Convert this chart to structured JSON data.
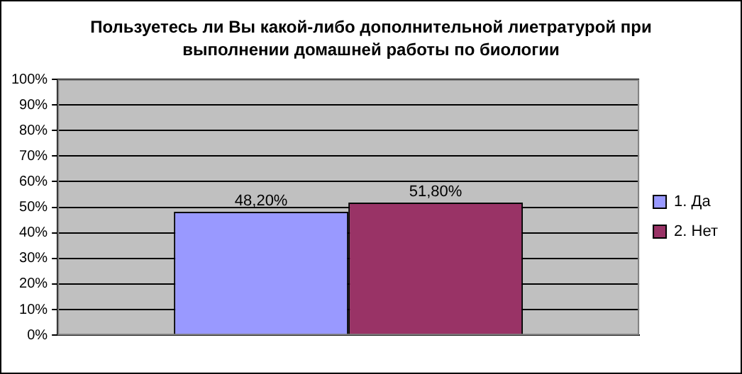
{
  "chart_data": {
    "type": "bar",
    "title": "Пользуетесь ли Вы какой-либо дополнительной лиетратурой при выполнении домашней работы по биологии",
    "categories": [
      null
    ],
    "series": [
      {
        "name": "1. Да",
        "color": "#9999ff",
        "values": [
          48.2
        ],
        "value_labels": [
          "48,20%"
        ]
      },
      {
        "name": "2. Нет",
        "color": "#993366",
        "values": [
          51.8
        ],
        "value_labels": [
          "51,80%"
        ]
      }
    ],
    "ylim": [
      0,
      100
    ],
    "yticks": [
      {
        "value": 0,
        "label": "0%"
      },
      {
        "value": 10,
        "label": "10%"
      },
      {
        "value": 20,
        "label": "20%"
      },
      {
        "value": 30,
        "label": "30%"
      },
      {
        "value": 40,
        "label": "40%"
      },
      {
        "value": 50,
        "label": "50%"
      },
      {
        "value": 60,
        "label": "60%"
      },
      {
        "value": 70,
        "label": "70%"
      },
      {
        "value": 80,
        "label": "80%"
      },
      {
        "value": 90,
        "label": "90%"
      },
      {
        "value": 100,
        "label": "100%"
      }
    ],
    "grid": "y",
    "legend": "right"
  }
}
